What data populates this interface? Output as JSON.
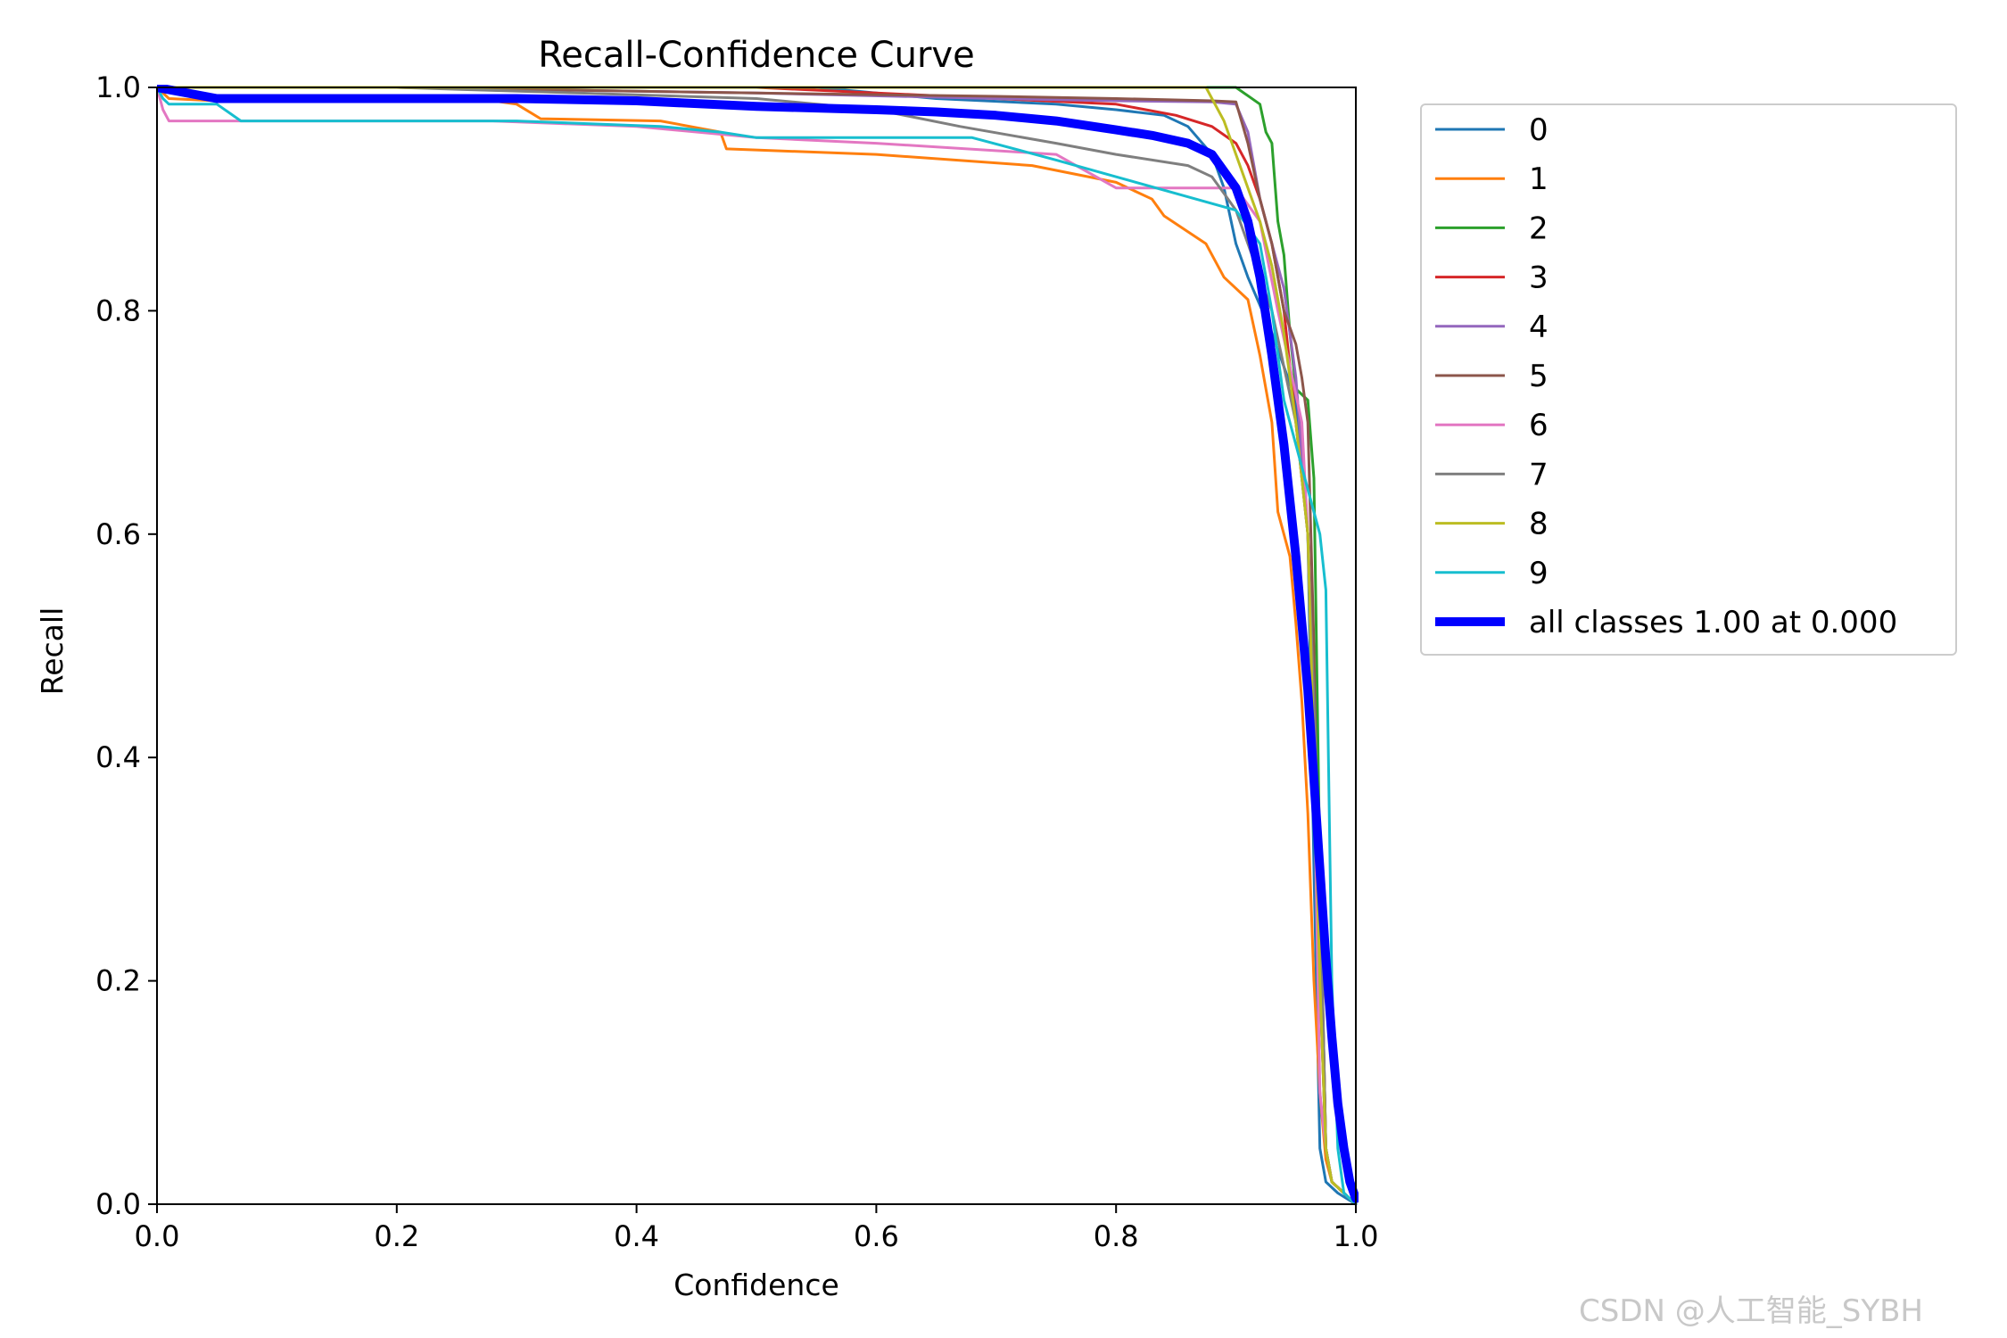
{
  "chart_data": {
    "type": "line",
    "title": "Recall-Confidence Curve",
    "xlabel": "Confidence",
    "ylabel": "Recall",
    "xlim": [
      0,
      1
    ],
    "ylim": [
      0,
      1
    ],
    "xticks": [
      "0.0",
      "0.2",
      "0.4",
      "0.6",
      "0.8",
      "1.0"
    ],
    "yticks": [
      "0.0",
      "0.2",
      "0.4",
      "0.6",
      "0.8",
      "1.0"
    ],
    "grid": false,
    "legend_position": "outside-right-top",
    "series": [
      {
        "name": "0",
        "color": "#1f77b4",
        "width": 1.5,
        "x": [
          0,
          0.1,
          0.3,
          0.55,
          0.65,
          0.75,
          0.8,
          0.84,
          0.86,
          0.88,
          0.89,
          0.9,
          0.91,
          0.93,
          0.95,
          0.96,
          0.965,
          0.97,
          0.975,
          0.985,
          1.0
        ],
        "y": [
          1.0,
          1.0,
          1.0,
          1.0,
          0.99,
          0.985,
          0.98,
          0.975,
          0.965,
          0.94,
          0.91,
          0.86,
          0.83,
          0.78,
          0.72,
          0.6,
          0.3,
          0.05,
          0.02,
          0.01,
          0.0
        ]
      },
      {
        "name": "1",
        "color": "#ff7f0e",
        "width": 1.5,
        "x": [
          0,
          0.01,
          0.05,
          0.1,
          0.28,
          0.3,
          0.32,
          0.42,
          0.47,
          0.475,
          0.6,
          0.73,
          0.8,
          0.83,
          0.84,
          0.875,
          0.89,
          0.91,
          0.92,
          0.93,
          0.935,
          0.945,
          0.95,
          0.955,
          0.96,
          0.965,
          0.97,
          0.975,
          0.98,
          0.99,
          1.0
        ],
        "y": [
          1.0,
          0.99,
          0.988,
          0.988,
          0.988,
          0.985,
          0.972,
          0.97,
          0.96,
          0.945,
          0.94,
          0.93,
          0.915,
          0.9,
          0.885,
          0.86,
          0.83,
          0.81,
          0.76,
          0.7,
          0.62,
          0.58,
          0.52,
          0.45,
          0.35,
          0.2,
          0.1,
          0.04,
          0.02,
          0.01,
          0.0
        ]
      },
      {
        "name": "2",
        "color": "#2ca02c",
        "width": 1.5,
        "x": [
          0,
          0.2,
          0.47,
          0.6,
          0.8,
          0.9,
          0.92,
          0.925,
          0.93,
          0.935,
          0.94,
          0.945,
          0.95,
          0.96,
          0.965,
          0.97,
          0.975,
          0.98,
          0.99,
          1.0
        ],
        "y": [
          1.0,
          1.0,
          1.0,
          1.0,
          1.0,
          1.0,
          0.985,
          0.96,
          0.95,
          0.88,
          0.85,
          0.78,
          0.73,
          0.72,
          0.65,
          0.3,
          0.05,
          0.02,
          0.01,
          0.0
        ]
      },
      {
        "name": "3",
        "color": "#d62728",
        "width": 1.5,
        "x": [
          0,
          0.2,
          0.5,
          0.7,
          0.8,
          0.85,
          0.88,
          0.9,
          0.91,
          0.92,
          0.93,
          0.94,
          0.95,
          0.96,
          0.97,
          0.975,
          0.98,
          0.99,
          1.0
        ],
        "y": [
          1.0,
          1.0,
          1.0,
          0.99,
          0.985,
          0.975,
          0.965,
          0.95,
          0.93,
          0.9,
          0.86,
          0.8,
          0.7,
          0.6,
          0.3,
          0.05,
          0.02,
          0.01,
          0.0
        ]
      },
      {
        "name": "4",
        "color": "#9467bd",
        "width": 1.5,
        "x": [
          0,
          0.2,
          0.5,
          0.7,
          0.8,
          0.88,
          0.9,
          0.91,
          0.92,
          0.93,
          0.94,
          0.95,
          0.96,
          0.965,
          0.97,
          0.975,
          0.98,
          0.99,
          1.0
        ],
        "y": [
          1.0,
          1.0,
          0.995,
          0.99,
          0.988,
          0.987,
          0.985,
          0.96,
          0.9,
          0.86,
          0.82,
          0.74,
          0.6,
          0.4,
          0.2,
          0.05,
          0.02,
          0.01,
          0.0
        ]
      },
      {
        "name": "5",
        "color": "#8c564b",
        "width": 1.5,
        "x": [
          0,
          0.2,
          0.5,
          0.7,
          0.8,
          0.88,
          0.9,
          0.91,
          0.92,
          0.93,
          0.94,
          0.95,
          0.955,
          0.96,
          0.965,
          0.97,
          0.975,
          0.98,
          0.99,
          1.0
        ],
        "y": [
          1.0,
          1.0,
          0.995,
          0.992,
          0.99,
          0.988,
          0.987,
          0.95,
          0.9,
          0.86,
          0.8,
          0.77,
          0.74,
          0.7,
          0.5,
          0.2,
          0.05,
          0.02,
          0.01,
          0.0
        ]
      },
      {
        "name": "6",
        "color": "#e377c2",
        "width": 1.5,
        "x": [
          0,
          0.005,
          0.01,
          0.1,
          0.28,
          0.4,
          0.5,
          0.6,
          0.75,
          0.8,
          0.82,
          0.88,
          0.9,
          0.92,
          0.935,
          0.945,
          0.955,
          0.96,
          0.965,
          0.97,
          0.975,
          0.98,
          0.99,
          1.0
        ],
        "y": [
          1.0,
          0.98,
          0.97,
          0.97,
          0.97,
          0.965,
          0.955,
          0.95,
          0.94,
          0.91,
          0.91,
          0.91,
          0.91,
          0.88,
          0.8,
          0.75,
          0.7,
          0.6,
          0.4,
          0.1,
          0.05,
          0.02,
          0.01,
          0.0
        ]
      },
      {
        "name": "7",
        "color": "#7f7f7f",
        "width": 1.5,
        "x": [
          0,
          0.2,
          0.5,
          0.6,
          0.67,
          0.75,
          0.8,
          0.86,
          0.88,
          0.89,
          0.9,
          0.91,
          0.93,
          0.95,
          0.96,
          0.97,
          0.975,
          0.98,
          0.99,
          1.0
        ],
        "y": [
          1.0,
          1.0,
          0.99,
          0.98,
          0.965,
          0.95,
          0.94,
          0.93,
          0.92,
          0.905,
          0.89,
          0.86,
          0.8,
          0.7,
          0.6,
          0.3,
          0.05,
          0.02,
          0.01,
          0.0
        ]
      },
      {
        "name": "8",
        "color": "#bcbd22",
        "width": 1.5,
        "x": [
          0,
          0.2,
          0.5,
          0.7,
          0.8,
          0.87,
          0.875,
          0.89,
          0.9,
          0.91,
          0.92,
          0.93,
          0.94,
          0.95,
          0.96,
          0.965,
          0.97,
          0.975,
          0.98,
          0.99,
          1.0
        ],
        "y": [
          1.0,
          1.0,
          1.0,
          1.0,
          1.0,
          1.0,
          1.0,
          0.97,
          0.94,
          0.91,
          0.88,
          0.84,
          0.78,
          0.7,
          0.6,
          0.4,
          0.2,
          0.05,
          0.02,
          0.01,
          0.0
        ]
      },
      {
        "name": "9",
        "color": "#17becf",
        "width": 1.5,
        "x": [
          0,
          0.005,
          0.01,
          0.05,
          0.07,
          0.3,
          0.42,
          0.47,
          0.5,
          0.68,
          0.75,
          0.8,
          0.85,
          0.9,
          0.92,
          0.93,
          0.94,
          0.95,
          0.96,
          0.97,
          0.975,
          0.98,
          0.985,
          0.99,
          1.0
        ],
        "y": [
          1.0,
          0.99,
          0.985,
          0.985,
          0.97,
          0.97,
          0.965,
          0.96,
          0.955,
          0.955,
          0.935,
          0.92,
          0.905,
          0.89,
          0.86,
          0.8,
          0.72,
          0.68,
          0.64,
          0.6,
          0.55,
          0.2,
          0.05,
          0.01,
          0.0
        ]
      },
      {
        "name": "all classes 1.00 at 0.000",
        "color": "#0000ff",
        "width": 5,
        "x": [
          0,
          0.05,
          0.1,
          0.2,
          0.3,
          0.4,
          0.5,
          0.6,
          0.65,
          0.7,
          0.75,
          0.8,
          0.83,
          0.86,
          0.88,
          0.9,
          0.91,
          0.92,
          0.93,
          0.94,
          0.95,
          0.96,
          0.965,
          0.97,
          0.975,
          0.98,
          0.985,
          0.99,
          0.995,
          1.0
        ],
        "y": [
          1.0,
          0.99,
          0.99,
          0.99,
          0.99,
          0.988,
          0.983,
          0.98,
          0.978,
          0.975,
          0.97,
          0.962,
          0.957,
          0.95,
          0.94,
          0.91,
          0.88,
          0.83,
          0.76,
          0.68,
          0.58,
          0.46,
          0.38,
          0.3,
          0.22,
          0.15,
          0.09,
          0.05,
          0.02,
          0.005
        ]
      }
    ]
  },
  "watermark": "CSDN @人工智能_SYBH"
}
